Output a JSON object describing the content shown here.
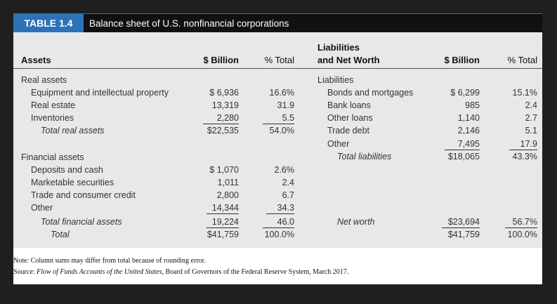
{
  "table": {
    "number": "TABLE 1.4",
    "title": "Balance sheet of U.S. nonfinancial corporations"
  },
  "headers": {
    "assets": "Assets",
    "billion": "$ Billion",
    "pct": "% Total",
    "liab_line1": "Liabilities",
    "liab_line2": "and Net Worth"
  },
  "assets": {
    "real_heading": "Real assets",
    "real": [
      {
        "label": "Equipment and intellectual property",
        "billion": "$ 6,936",
        "pct": "16.6%"
      },
      {
        "label": "Real estate",
        "billion": "13,319",
        "pct": "31.9"
      },
      {
        "label": "Inventories",
        "billion": "2,280",
        "pct": "5.5"
      }
    ],
    "real_total": {
      "label": "Total real assets",
      "billion": "$22,535",
      "pct": "54.0%"
    },
    "financial_heading": "Financial assets",
    "financial": [
      {
        "label": "Deposits and cash",
        "billion": "$ 1,070",
        "pct": "2.6%"
      },
      {
        "label": "Marketable securities",
        "billion": "1,011",
        "pct": "2.4"
      },
      {
        "label": "Trade and consumer credit",
        "billion": "2,800",
        "pct": "6.7"
      },
      {
        "label": "Other",
        "billion": "14,344",
        "pct": "34.3"
      }
    ],
    "financial_total": {
      "label": "Total financial assets",
      "billion": "19,224",
      "pct": "46.0"
    },
    "total": {
      "label": "Total",
      "billion": "$41,759",
      "pct": "100.0%"
    }
  },
  "liabilities": {
    "heading": "Liabilities",
    "items": [
      {
        "label": "Bonds and mortgages",
        "billion": "$ 6,299",
        "pct": "15.1%"
      },
      {
        "label": "Bank loans",
        "billion": "985",
        "pct": "2.4"
      },
      {
        "label": "Other loans",
        "billion": "1,140",
        "pct": "2.7"
      },
      {
        "label": "Trade debt",
        "billion": "2,146",
        "pct": "5.1"
      },
      {
        "label": "Other",
        "billion": "7,495",
        "pct": "17.9"
      }
    ],
    "total": {
      "label": "Total liabilities",
      "billion": "$18,065",
      "pct": "43.3%"
    },
    "net_worth": {
      "label": "Net worth",
      "billion": "$23,694",
      "pct": "56.7%"
    },
    "grand_total": {
      "billion": "$41,759",
      "pct": "100.0%"
    }
  },
  "notes": {
    "note": "Note: Column sums may differ from total because of rounding error.",
    "source_prefix": "Source: ",
    "source_italic": "Flow of Funds Accounts of the United States",
    "source_suffix": ", Board of Governors of the Federal Reserve System, March 2017."
  }
}
